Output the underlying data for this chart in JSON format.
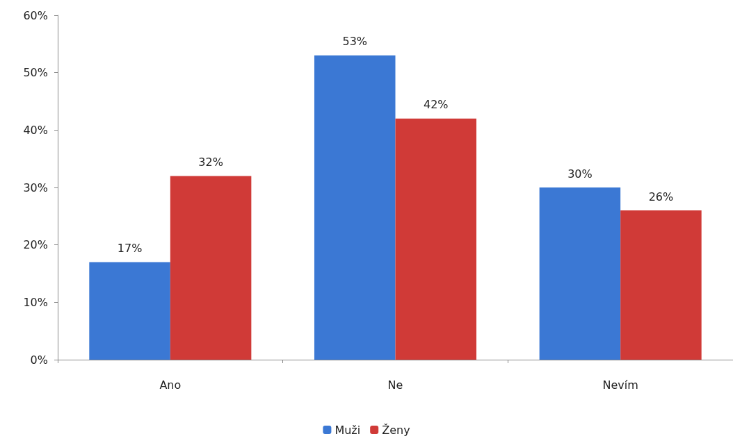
{
  "chart_data": {
    "type": "bar",
    "categories": [
      "Ano",
      "Ne",
      "Nevím"
    ],
    "series": [
      {
        "name": "Muži",
        "color": "#3b78d4",
        "values": [
          17,
          53,
          30
        ],
        "value_labels": [
          "17%",
          "53%",
          "30%"
        ]
      },
      {
        "name": "Ženy",
        "color": "#d03a37",
        "values": [
          32,
          42,
          26
        ],
        "value_labels": [
          "32%",
          "42%",
          "26%"
        ]
      }
    ],
    "ylim": [
      0,
      60
    ],
    "yticks": [
      {
        "value": 0,
        "label": "0%"
      },
      {
        "value": 10,
        "label": "10%"
      },
      {
        "value": 20,
        "label": "20%"
      },
      {
        "value": 30,
        "label": "30%"
      },
      {
        "value": 40,
        "label": "40%"
      },
      {
        "value": 50,
        "label": "50%"
      },
      {
        "value": 60,
        "label": "60%"
      }
    ],
    "grid": false,
    "legend": "bottom"
  }
}
